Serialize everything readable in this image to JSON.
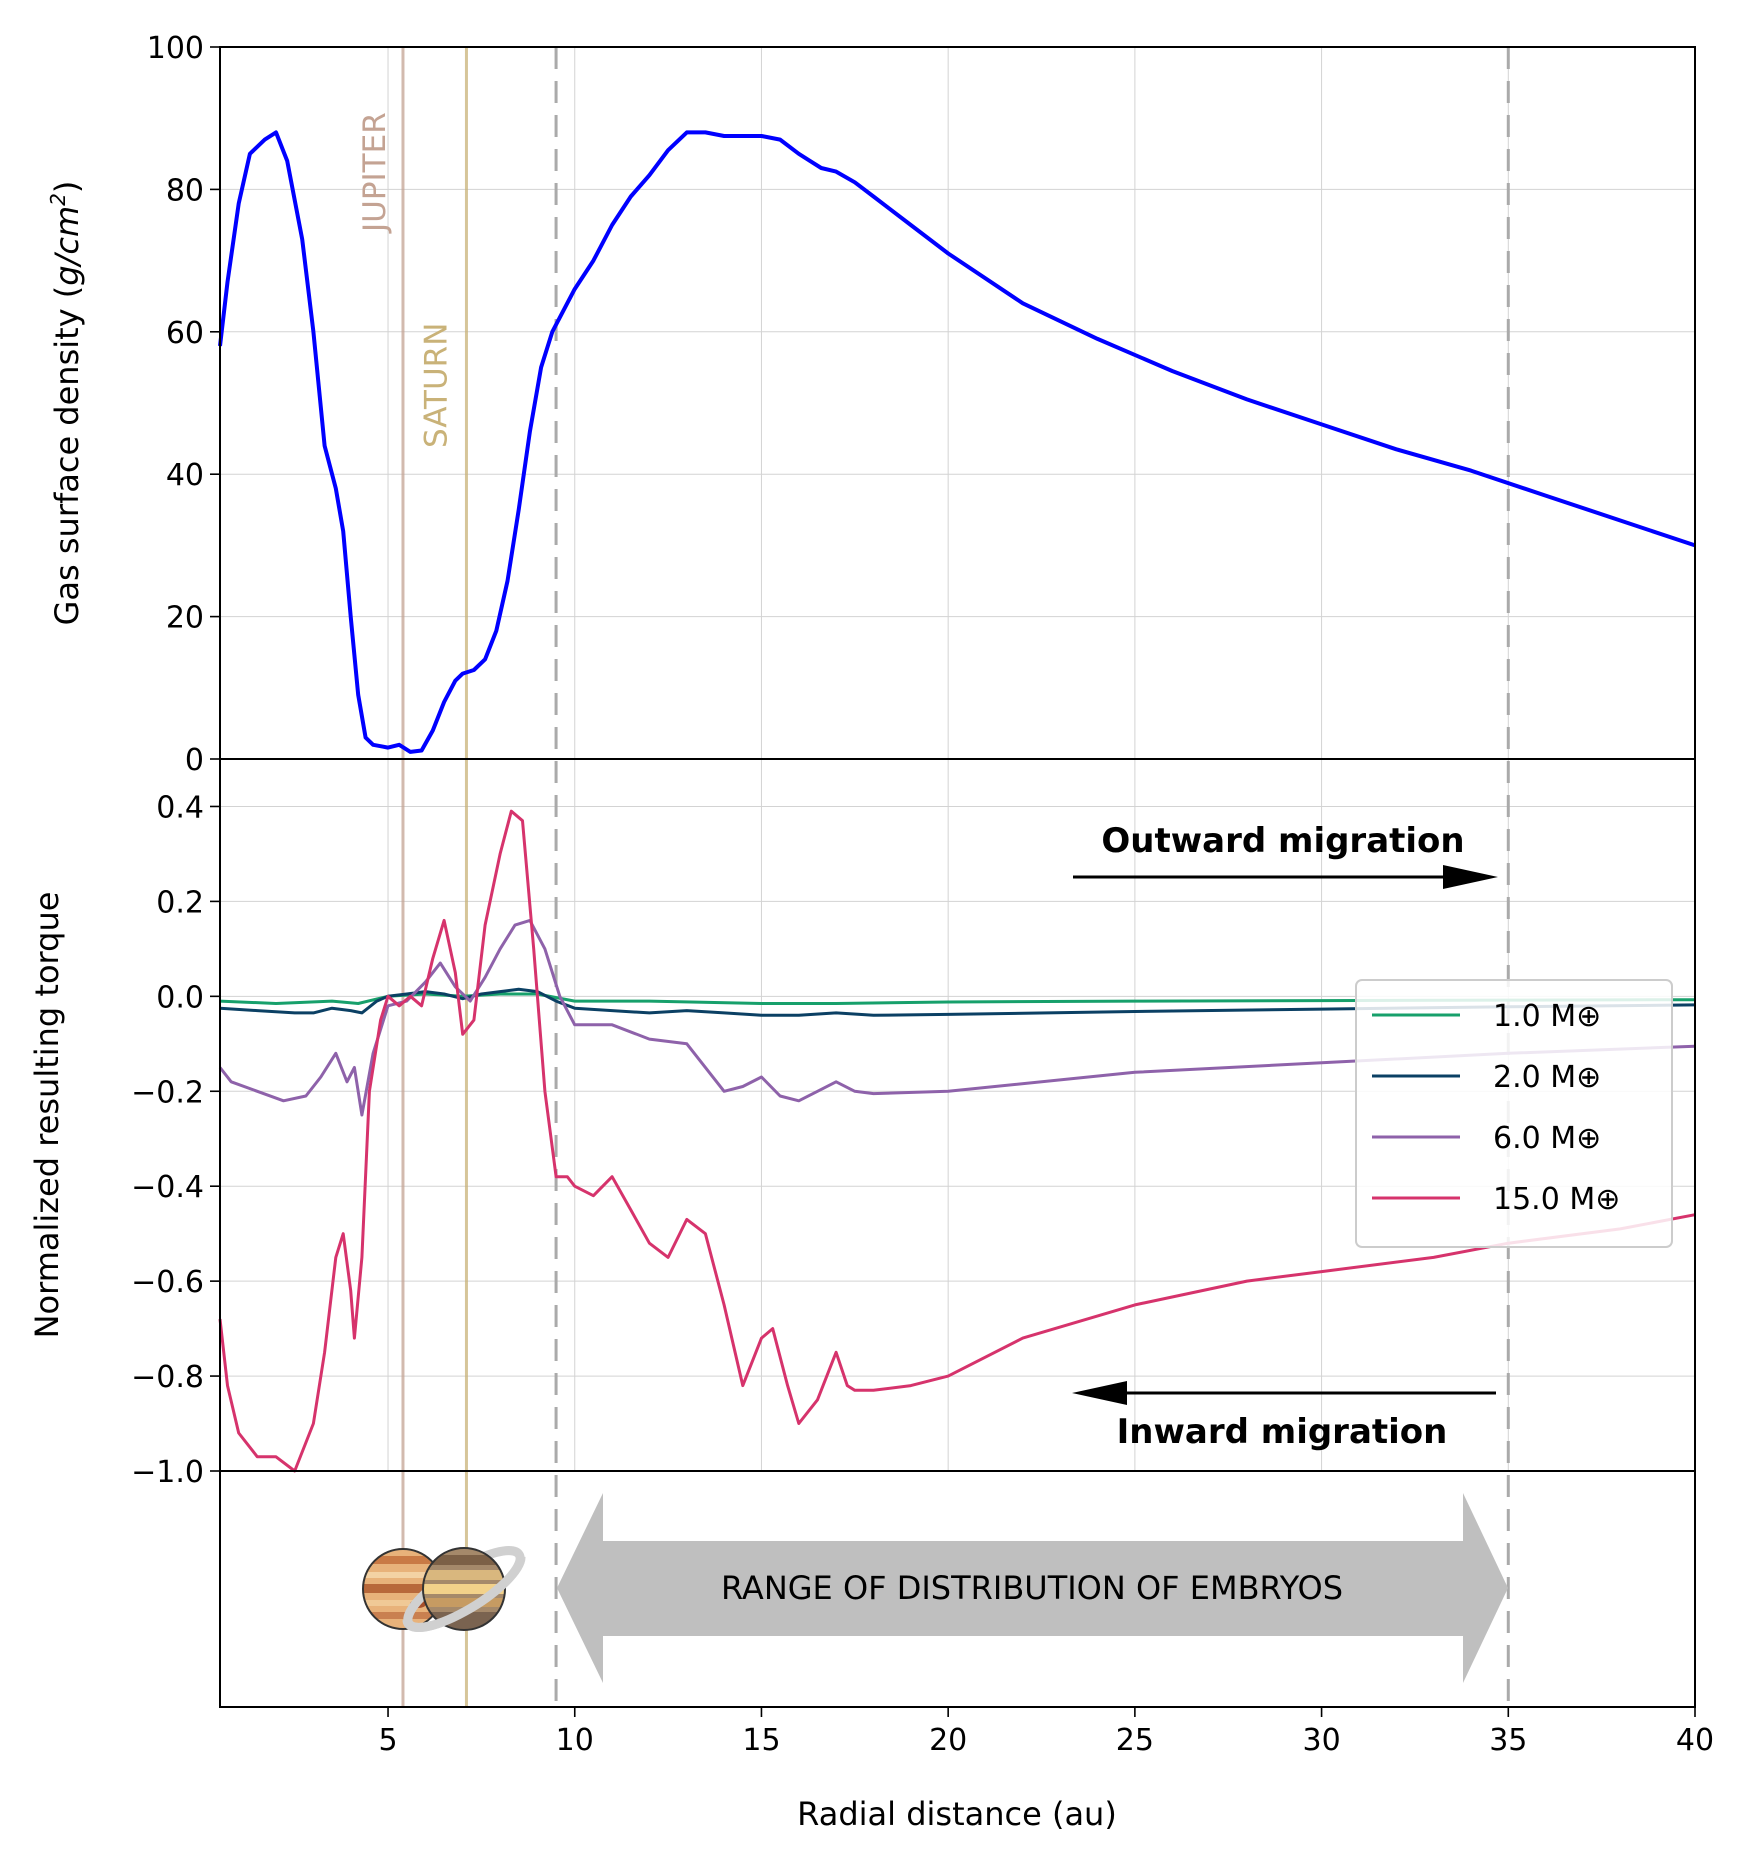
{
  "chart_data": [
    {
      "type": "line",
      "panel": "top",
      "xlabel": "Radial distance (au)",
      "ylabel": "Gas surface density (g/cm²)",
      "xlim": [
        0.5,
        40
      ],
      "ylim": [
        0,
        100
      ],
      "yticks": [
        "0",
        "20",
        "40",
        "60",
        "80",
        "100"
      ],
      "grid": true,
      "series": [
        {
          "name": "Gas surface density",
          "color": "#0000ff",
          "x": [
            0.5,
            0.7,
            1.0,
            1.3,
            1.7,
            2.0,
            2.3,
            2.7,
            3.0,
            3.3,
            3.6,
            3.8,
            4.0,
            4.2,
            4.4,
            4.6,
            4.8,
            5.0,
            5.3,
            5.6,
            5.9,
            6.2,
            6.5,
            6.8,
            7.0,
            7.3,
            7.6,
            7.9,
            8.2,
            8.5,
            8.8,
            9.1,
            9.4,
            9.7,
            10.0,
            10.5,
            11.0,
            11.5,
            12.0,
            12.5,
            13.0,
            13.5,
            14.0,
            14.5,
            15.0,
            15.5,
            16.0,
            16.3,
            16.6,
            17.0,
            17.5,
            18.0,
            19.0,
            20.0,
            22.0,
            24.0,
            26.0,
            28.0,
            30.0,
            32.0,
            34.0,
            36.0,
            38.0,
            40.0
          ],
          "values": [
            58,
            67,
            78,
            85,
            87,
            88,
            84,
            73,
            60,
            44,
            38,
            32,
            20,
            9,
            3,
            2,
            1.8,
            1.6,
            2.0,
            1.0,
            1.2,
            4,
            8,
            11,
            12,
            12.5,
            14,
            18,
            25,
            35,
            46,
            55,
            60,
            63,
            66,
            70,
            75,
            79,
            82,
            85.5,
            88,
            88,
            87.5,
            87.5,
            87.5,
            87,
            85,
            84,
            83,
            82.5,
            81,
            79,
            75,
            71,
            64,
            59,
            54.5,
            50.5,
            47,
            43.5,
            40.5,
            37,
            33.5,
            30
          ]
        }
      ]
    },
    {
      "type": "line",
      "panel": "middle",
      "xlabel": "Radial distance (au)",
      "ylabel": "Normalized resulting torque",
      "xlim": [
        0.5,
        40
      ],
      "ylim": [
        -1.0,
        0.5
      ],
      "yticks": [
        "−1.0",
        "−0.8",
        "−0.6",
        "−0.4",
        "−0.2",
        "0.0",
        "0.2",
        "0.4"
      ],
      "grid": true,
      "legend_position": "center-right",
      "series": [
        {
          "name": "1.0 M⊕",
          "color": "#17a06b",
          "x": [
            0.5,
            2.0,
            3.5,
            4.2,
            5.0,
            6.0,
            7.0,
            8.0,
            9.0,
            10.0,
            12.0,
            15.0,
            17.0,
            20.0,
            25.0,
            30.0,
            35.0,
            40.0
          ],
          "values": [
            -0.01,
            -0.015,
            -0.01,
            -0.015,
            0.0,
            0.005,
            0.0,
            0.005,
            0.005,
            -0.01,
            -0.01,
            -0.015,
            -0.015,
            -0.012,
            -0.01,
            -0.009,
            -0.008,
            -0.007
          ]
        },
        {
          "name": "2.0 M⊕",
          "color": "#0b4064",
          "x": [
            0.5,
            1.5,
            2.5,
            3.0,
            3.5,
            4.0,
            4.3,
            4.7,
            5.0,
            5.5,
            6.0,
            6.5,
            7.0,
            7.5,
            8.0,
            8.5,
            9.0,
            9.5,
            10.0,
            11.0,
            12.0,
            13.0,
            14.0,
            15.0,
            16.0,
            17.0,
            18.0,
            20.0,
            25.0,
            30.0,
            35.0,
            40.0
          ],
          "values": [
            -0.025,
            -0.03,
            -0.035,
            -0.035,
            -0.025,
            -0.03,
            -0.035,
            -0.01,
            0.0,
            0.005,
            0.01,
            0.005,
            -0.005,
            0.005,
            0.01,
            0.015,
            0.01,
            -0.01,
            -0.025,
            -0.03,
            -0.035,
            -0.03,
            -0.035,
            -0.04,
            -0.04,
            -0.035,
            -0.04,
            -0.038,
            -0.032,
            -0.027,
            -0.022,
            -0.018
          ]
        },
        {
          "name": "6.0 M⊕",
          "color": "#8e62aa",
          "x": [
            0.5,
            0.8,
            1.5,
            2.2,
            2.8,
            3.2,
            3.6,
            3.9,
            4.1,
            4.3,
            4.6,
            5.0,
            5.5,
            6.0,
            6.4,
            6.8,
            7.2,
            7.6,
            8.0,
            8.4,
            8.8,
            9.2,
            9.6,
            10.0,
            11.0,
            12.0,
            13.0,
            14.0,
            14.5,
            15.0,
            15.5,
            16.0,
            16.5,
            17.0,
            17.5,
            18.0,
            20.0,
            25.0,
            30.0,
            35.0,
            40.0
          ],
          "values": [
            -0.15,
            -0.18,
            -0.2,
            -0.22,
            -0.21,
            -0.17,
            -0.12,
            -0.18,
            -0.15,
            -0.25,
            -0.12,
            -0.02,
            -0.01,
            0.03,
            0.07,
            0.02,
            -0.01,
            0.04,
            0.1,
            0.15,
            0.16,
            0.1,
            0.0,
            -0.06,
            -0.06,
            -0.09,
            -0.1,
            -0.2,
            -0.19,
            -0.17,
            -0.21,
            -0.22,
            -0.2,
            -0.18,
            -0.2,
            -0.205,
            -0.2,
            -0.16,
            -0.14,
            -0.12,
            -0.105
          ]
        },
        {
          "name": "15.0 M⊕",
          "color": "#d6336c",
          "x": [
            0.5,
            0.7,
            1.0,
            1.5,
            2.0,
            2.5,
            3.0,
            3.3,
            3.6,
            3.8,
            4.0,
            4.1,
            4.3,
            4.5,
            4.8,
            5.0,
            5.3,
            5.6,
            5.9,
            6.2,
            6.5,
            6.8,
            7.0,
            7.3,
            7.6,
            8.0,
            8.3,
            8.6,
            8.9,
            9.2,
            9.5,
            9.8,
            10.0,
            10.5,
            11.0,
            11.5,
            12.0,
            12.5,
            13.0,
            13.5,
            14.0,
            14.5,
            15.0,
            15.3,
            15.7,
            16.0,
            16.5,
            17.0,
            17.3,
            17.5,
            18.0,
            19.0,
            20.0,
            22.0,
            25.0,
            28.0,
            30.0,
            33.0,
            35.0,
            38.0,
            40.0
          ],
          "values": [
            -0.68,
            -0.82,
            -0.92,
            -0.97,
            -0.97,
            -1.0,
            -0.9,
            -0.75,
            -0.55,
            -0.5,
            -0.62,
            -0.72,
            -0.55,
            -0.2,
            -0.05,
            0.0,
            -0.02,
            0.0,
            -0.02,
            0.08,
            0.16,
            0.05,
            -0.08,
            -0.05,
            0.15,
            0.3,
            0.39,
            0.37,
            0.1,
            -0.2,
            -0.38,
            -0.38,
            -0.4,
            -0.42,
            -0.38,
            -0.45,
            -0.52,
            -0.55,
            -0.47,
            -0.5,
            -0.65,
            -0.82,
            -0.72,
            -0.7,
            -0.82,
            -0.9,
            -0.85,
            -0.75,
            -0.82,
            -0.83,
            -0.83,
            -0.82,
            -0.8,
            -0.72,
            -0.65,
            -0.6,
            -0.58,
            -0.55,
            -0.52,
            -0.49,
            -0.46
          ]
        }
      ]
    }
  ],
  "x_axis": {
    "label": "Radial distance (au)",
    "ticks": [
      5,
      10,
      15,
      20,
      25,
      30,
      35,
      40
    ],
    "tick_labels": [
      "5",
      "10",
      "15",
      "20",
      "25",
      "30",
      "35",
      "40"
    ]
  },
  "top_ylabel_prefix": "Gas surface density (",
  "top_ylabel_unit": "g/cm",
  "top_ylabel_exp": "2",
  "top_ylabel_suffix": ")",
  "middle_ylabel": "Normalized resulting torque",
  "planets": {
    "jupiter": {
      "label": "JUPITER",
      "position_au": 5.4,
      "color": "#c4a393"
    },
    "saturn": {
      "label": "SATURN",
      "position_au": 7.1,
      "color": "#c9b278"
    }
  },
  "boundaries_au": [
    9.5,
    35.0
  ],
  "annotations": {
    "outward": "Outward migration",
    "inward": "Inward migration",
    "range": "RANGE OF DISTRIBUTION OF EMBRYOS"
  },
  "legend": {
    "items": [
      {
        "label": "1.0 M⊕",
        "color": "#17a06b"
      },
      {
        "label": "2.0 M⊕",
        "color": "#0b4064"
      },
      {
        "label": "6.0 M⊕",
        "color": "#8e62aa"
      },
      {
        "label": "15.0 M⊕",
        "color": "#d6336c"
      }
    ]
  },
  "icons": [
    "jupiter-icon",
    "saturn-icon"
  ]
}
